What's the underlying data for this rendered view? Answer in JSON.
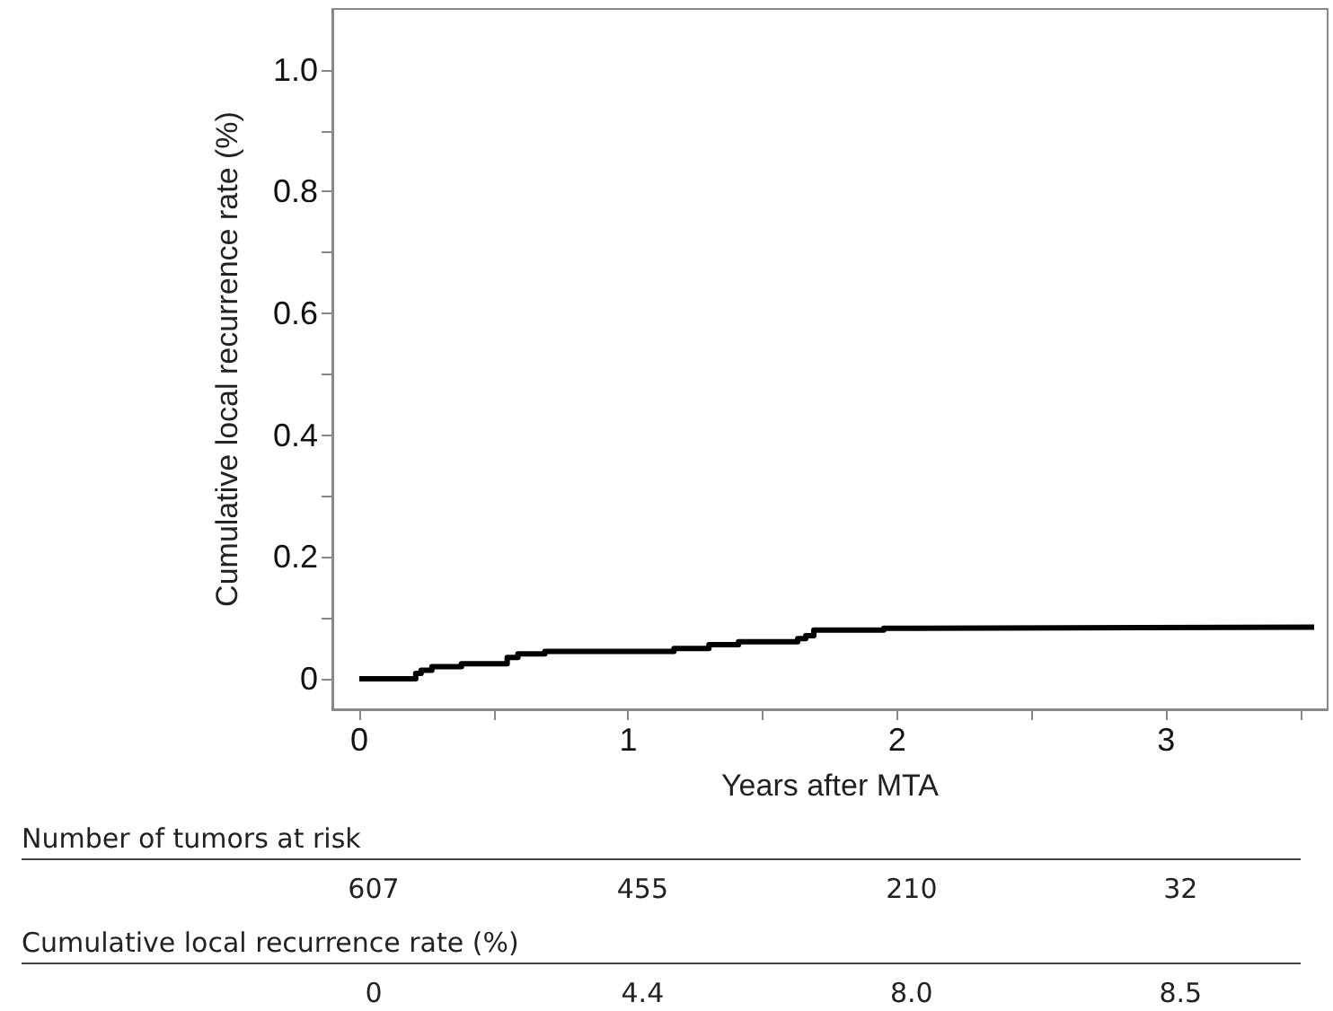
{
  "chart_data": {
    "type": "step",
    "xlabel": "Years after MTA",
    "ylabel": "Cumulative local recurrence rate (%)",
    "x": [
      0,
      0.21,
      0.23,
      0.27,
      0.38,
      0.55,
      0.59,
      0.69,
      0.77,
      1.17,
      1.3,
      1.41,
      1.63,
      1.66,
      1.69,
      1.95,
      2.06,
      3.55
    ],
    "series": [
      {
        "color": "#000000",
        "values": [
          0,
          0.009,
          0.014,
          0.02,
          0.025,
          0.035,
          0.041,
          0.045,
          0.045,
          0.05,
          0.056,
          0.061,
          0.066,
          0.071,
          0.08,
          0.083,
          0.085,
          0.085
        ]
      }
    ],
    "xlim": [
      -0.1,
      3.6
    ],
    "ylim": [
      -0.05,
      1.1
    ],
    "xticks": [
      0,
      {
        "value": 0.5,
        "label": null
      },
      1,
      {
        "value": 1.5,
        "label": null
      },
      2,
      {
        "value": 2.5,
        "label": null
      },
      3,
      {
        "value": 3.5,
        "label": null
      }
    ],
    "yticks": [
      0,
      {
        "value": 0.1,
        "label": null
      },
      0.2,
      {
        "value": 0.3,
        "label": null
      },
      0.4,
      {
        "value": 0.5,
        "label": null
      },
      0.6,
      {
        "value": 0.7,
        "label": null
      },
      0.8,
      {
        "value": 0.9,
        "label": null
      },
      {
        "value": 1,
        "label": "1.0"
      }
    ],
    "marker": "none",
    "line_style": "solid",
    "grid": false,
    "annotations": [
      "Number of tumors at risk",
      "607",
      "455",
      "210",
      "32",
      "Cumulative local recurrence rate (%)",
      "0",
      "4.4",
      "8.0",
      "8.5"
    ]
  }
}
